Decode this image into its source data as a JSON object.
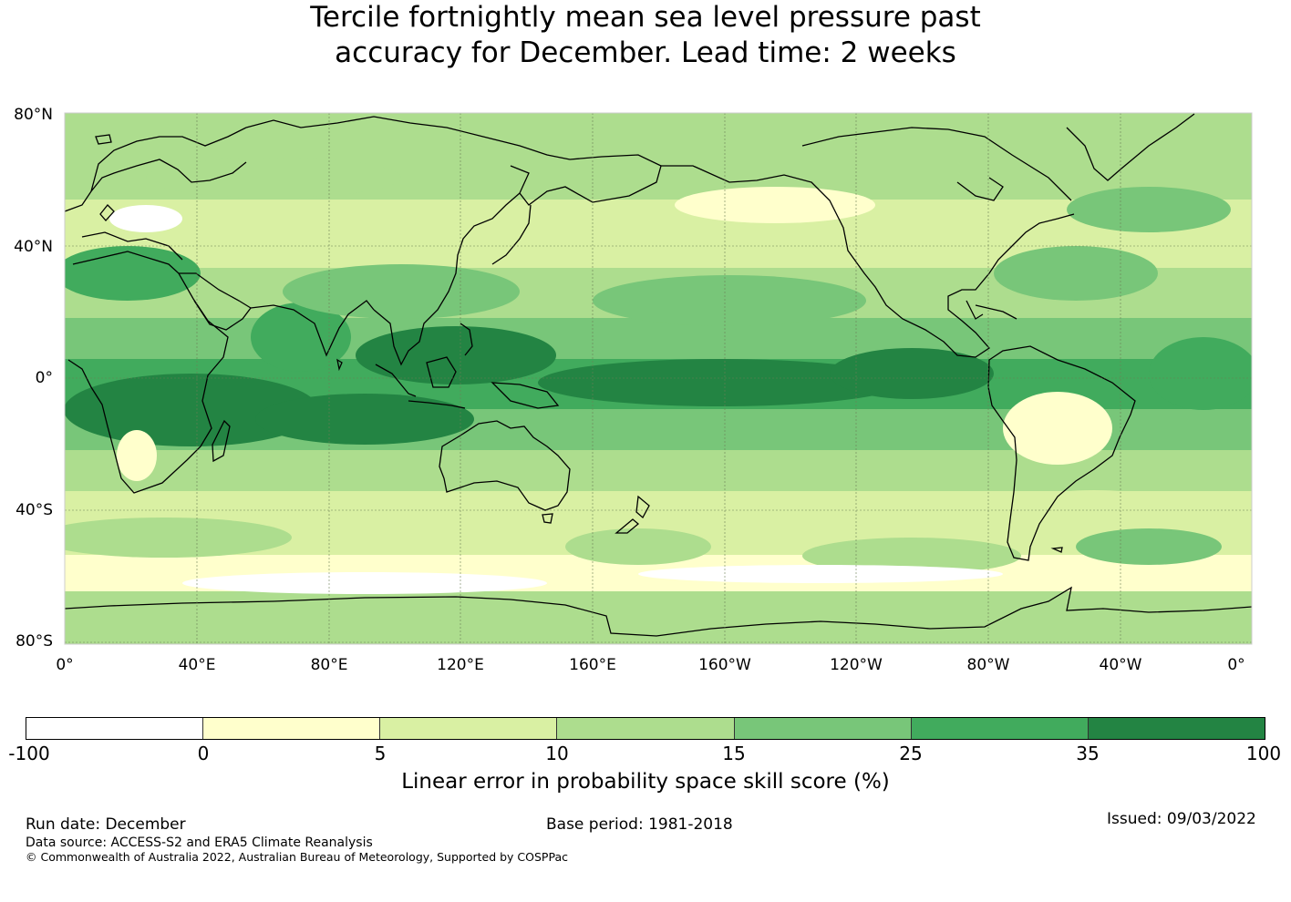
{
  "title": {
    "line1": "Tercile fortnightly mean sea level pressure past",
    "line2": "accuracy for December. Lead time: 2 weeks"
  },
  "map": {
    "lat_labels": [
      "80°N",
      "40°N",
      "0°",
      "40°S",
      "80°S"
    ],
    "lon_labels": [
      "0°",
      "40°E",
      "80°E",
      "120°E",
      "160°E",
      "160°W",
      "120°W",
      "80°W",
      "40°W",
      "0°"
    ],
    "lat_range": [
      -80,
      80
    ],
    "lon_range": [
      0,
      360
    ],
    "grid_color": "#6b7f55",
    "coast_color": "#000000"
  },
  "colorbar": {
    "ticks": [
      "-100",
      "0",
      "5",
      "10",
      "15",
      "25",
      "35",
      "100"
    ],
    "colors": [
      "#ffffff",
      "#ffffcc",
      "#d9f0a3",
      "#addd8e",
      "#78c679",
      "#41ab5d",
      "#238443"
    ],
    "label": "Linear error in probability space skill score (%)"
  },
  "footer": {
    "run_date": "Run date: December",
    "base_period": "Base period: 1981-2018",
    "issued": "Issued: 09/03/2022",
    "data_source": "Data source: ACCESS-S2 and ERA5 Climate Reanalysis",
    "copyright": "© Commonwealth of Australia 2022, Australian Bureau of Meteorology, Supported by COSPPac"
  }
}
